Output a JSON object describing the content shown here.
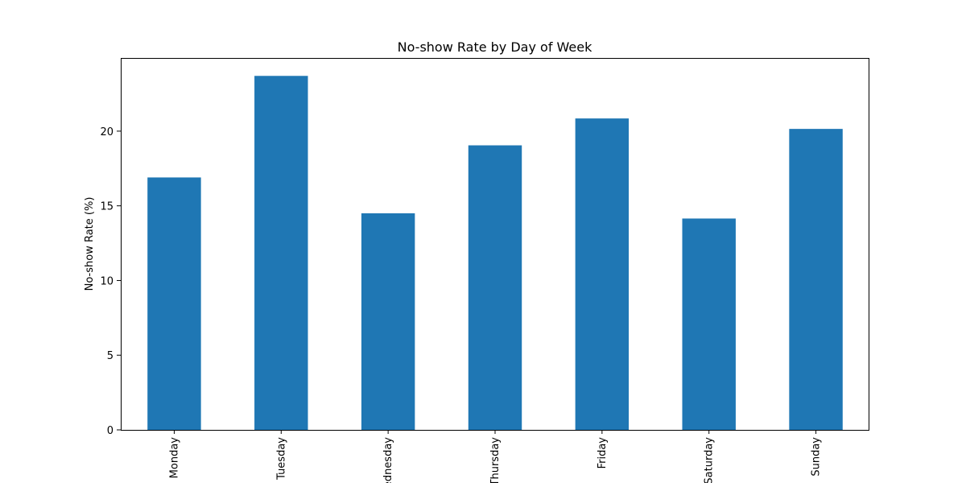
{
  "chart_data": {
    "type": "bar",
    "title": "No-show Rate by Day of Week",
    "xlabel": "",
    "ylabel": "No-show Rate (%)",
    "categories": [
      "Monday",
      "Tuesday",
      "Wednesday",
      "Thursday",
      "Friday",
      "Saturday",
      "Sunday"
    ],
    "values": [
      16.9,
      23.7,
      14.5,
      19.05,
      20.85,
      14.15,
      20.15
    ],
    "ylim": [
      0,
      24.9
    ],
    "yticks": [
      0,
      5,
      10,
      15,
      20
    ],
    "grid": false,
    "legend": "none",
    "bar_color": "#1f77b4",
    "xtick_rotation": "vertical"
  }
}
